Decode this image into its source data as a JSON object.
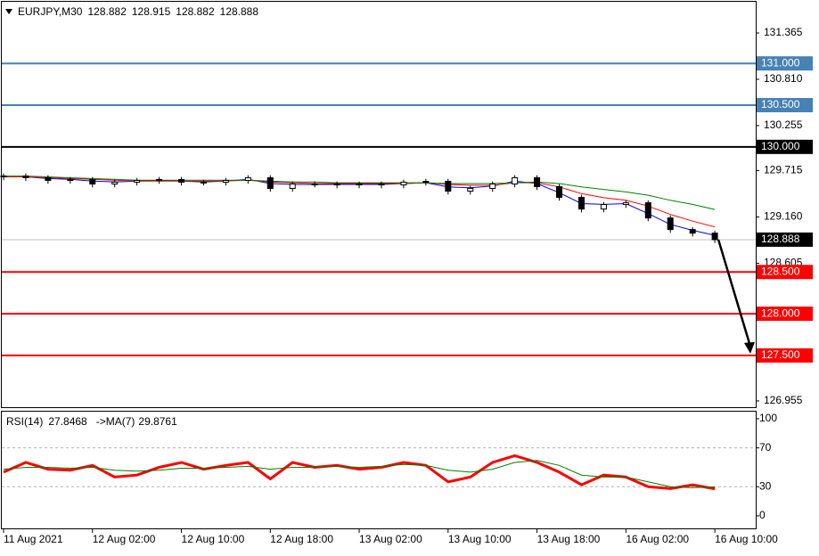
{
  "chart_data": [
    {
      "type": "candlestick",
      "symbol": "EURJPY,M30",
      "header_values": [
        128.882,
        128.915,
        128.882,
        128.888
      ],
      "open": [
        129.64,
        129.651,
        129.63,
        129.598,
        129.609,
        129.555,
        129.577,
        129.598,
        129.609,
        129.577,
        129.577,
        129.598,
        129.63,
        129.502,
        129.555,
        129.555,
        129.544,
        129.555,
        129.544,
        129.577,
        129.587,
        129.469,
        129.502,
        129.555,
        129.63,
        129.523,
        129.395,
        129.255,
        129.309,
        129.33,
        129.148,
        129.009,
        128.966
      ],
      "high": [
        129.681,
        129.681,
        129.66,
        129.639,
        129.639,
        129.607,
        129.628,
        129.639,
        129.639,
        129.607,
        129.628,
        129.66,
        129.66,
        129.585,
        129.585,
        129.585,
        129.585,
        129.585,
        129.607,
        129.617,
        129.617,
        129.532,
        129.585,
        129.66,
        129.66,
        129.553,
        129.425,
        129.339,
        129.36,
        129.36,
        129.178,
        129.039,
        128.996
      ],
      "low": [
        129.6,
        129.59,
        129.558,
        129.558,
        129.515,
        129.515,
        129.537,
        129.558,
        129.537,
        129.537,
        129.537,
        129.558,
        129.462,
        129.462,
        129.515,
        129.504,
        129.504,
        129.504,
        129.504,
        129.537,
        129.429,
        129.429,
        129.462,
        129.515,
        129.483,
        129.355,
        129.215,
        129.215,
        129.269,
        129.108,
        128.969,
        128.926,
        128.848
      ],
      "close": [
        129.651,
        129.63,
        129.598,
        129.609,
        129.555,
        129.577,
        129.598,
        129.609,
        129.577,
        129.577,
        129.598,
        129.63,
        129.502,
        129.555,
        129.555,
        129.544,
        129.555,
        129.544,
        129.577,
        129.587,
        129.469,
        129.502,
        129.555,
        129.63,
        129.523,
        129.395,
        129.255,
        129.309,
        129.33,
        129.148,
        129.009,
        128.966,
        128.888
      ],
      "series": [
        {
          "color": "#0000ff",
          "values": [
            129.64,
            129.64,
            129.62,
            129.61,
            129.59,
            129.58,
            129.59,
            129.6,
            129.59,
            129.58,
            129.59,
            129.61,
            129.56,
            129.55,
            129.55,
            129.55,
            129.55,
            129.55,
            129.56,
            129.57,
            129.52,
            129.51,
            129.53,
            129.59,
            129.56,
            129.45,
            129.32,
            129.31,
            129.32,
            129.2,
            129.07,
            129.0,
            128.94
          ]
        },
        {
          "color": "#ff0000",
          "values": [
            129.64,
            129.64,
            129.63,
            129.62,
            129.61,
            129.6,
            129.59,
            129.59,
            129.59,
            129.59,
            129.59,
            129.6,
            129.58,
            129.57,
            129.56,
            129.56,
            129.56,
            129.56,
            129.56,
            129.57,
            129.55,
            129.54,
            129.54,
            129.57,
            129.57,
            129.52,
            129.44,
            129.39,
            129.36,
            129.29,
            129.19,
            129.11,
            129.04
          ]
        },
        {
          "color": "#008000",
          "values": [
            129.65,
            129.65,
            129.64,
            129.63,
            129.62,
            129.61,
            129.6,
            129.6,
            129.6,
            129.6,
            129.6,
            129.6,
            129.59,
            129.58,
            129.58,
            129.57,
            129.57,
            129.57,
            129.57,
            129.57,
            129.56,
            129.56,
            129.56,
            129.57,
            129.58,
            129.56,
            129.52,
            129.49,
            129.46,
            129.42,
            129.36,
            129.31,
            129.25
          ]
        }
      ],
      "levels": [
        {
          "value": 131,
          "label": "131.000",
          "color": "#4682b4"
        },
        {
          "value": 130.5,
          "label": "130.500",
          "color": "#4682b4"
        },
        {
          "value": 130,
          "label": "130.000",
          "color": "#000000"
        },
        {
          "value": 128.5,
          "label": "128.500",
          "color": "#ff0000"
        },
        {
          "value": 128,
          "label": "128.000",
          "color": "#ff0000"
        },
        {
          "value": 127.5,
          "label": "127.500",
          "color": "#ff0000"
        }
      ],
      "current_price": {
        "value": 128.888,
        "label": "128.888",
        "color": "#c0c0c0"
      },
      "xlim": [
        -0.08,
        33.84
      ],
      "ylim": [
        126.869,
        131.739
      ],
      "yticks": [
        131.365,
        {
          "value": 130.81,
          "label": "130.810"
        },
        130.255,
        129.715,
        {
          "value": 129.16,
          "label": "129.160"
        },
        128.605,
        126.955
      ]
    },
    {
      "type": "line",
      "indicator": "RSI(14)",
      "indicator_value": 27.8468,
      "ma_label": "->MA(7)",
      "ma_value": 29.8761,
      "series": [
        {
          "color": "#ff0000",
          "values": [
            45,
            55,
            48,
            47,
            52,
            40,
            42,
            50,
            55,
            48,
            52,
            55,
            38,
            55,
            50,
            52,
            48,
            50,
            55,
            52,
            35,
            40,
            55,
            62,
            55,
            45,
            32,
            42,
            40,
            30,
            28,
            32,
            27.8468
          ]
        },
        {
          "color": "#008000",
          "values": [
            48,
            50,
            50,
            49,
            50,
            47,
            46,
            47,
            49,
            49,
            50,
            51,
            48,
            50,
            50,
            51,
            50,
            51,
            53,
            52,
            47,
            45,
            48,
            55,
            57,
            52,
            42,
            40,
            40,
            35,
            30,
            29,
            29.8761
          ]
        }
      ],
      "levels": [
        70,
        30
      ],
      "xlim": [
        -0.08,
        33.84
      ],
      "ylim": [
        -13.8,
        107.3
      ],
      "yticks": [
        100,
        70,
        30,
        0
      ],
      "xticks": [
        {
          "value": 0,
          "label": "11 Aug 2021"
        },
        {
          "value": 4,
          "label": "12 Aug 02:00"
        },
        {
          "value": 8,
          "label": "12 Aug 10:00"
        },
        {
          "value": 12,
          "label": "12 Aug 18:00"
        },
        {
          "value": 16,
          "label": "13 Aug 02:00"
        },
        {
          "value": 20,
          "label": "13 Aug 10:00"
        },
        {
          "value": 24,
          "label": "13 Aug 18:00"
        },
        {
          "value": 28,
          "label": "16 Aug 02:00"
        },
        {
          "value": 32,
          "label": "16 Aug 10:00"
        }
      ]
    }
  ]
}
